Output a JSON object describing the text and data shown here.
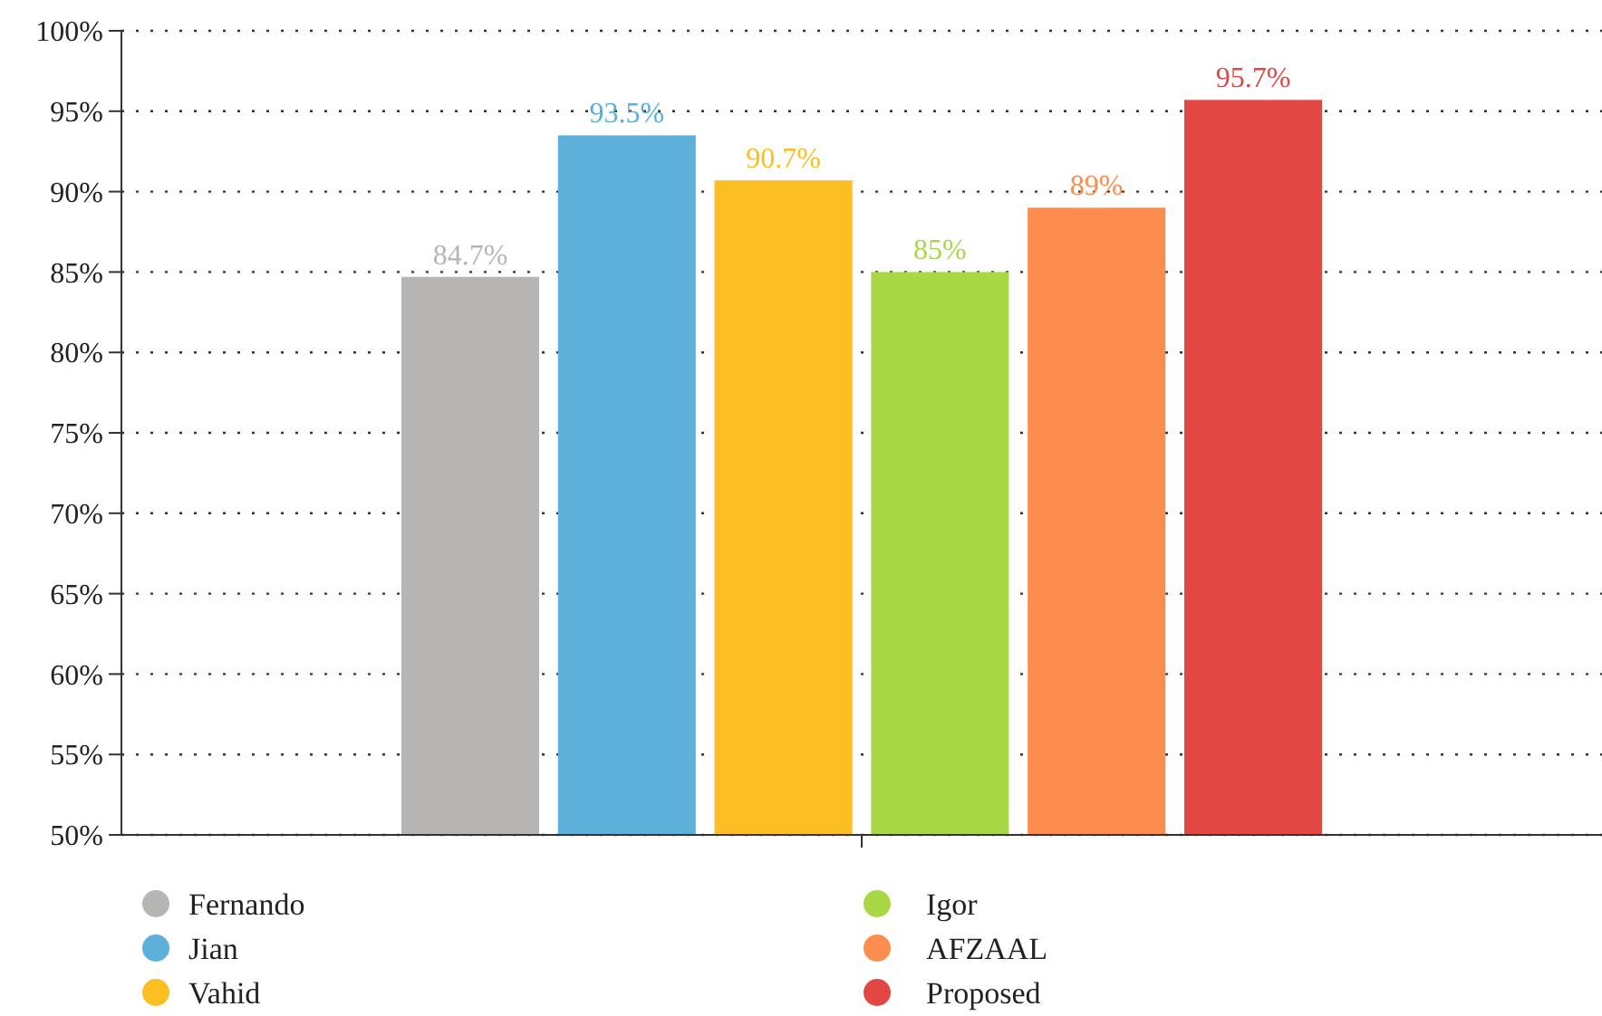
{
  "chart_data": {
    "type": "bar",
    "categories": [
      null
    ],
    "series": [
      {
        "name": "Fernando",
        "color": "#b6b5b3",
        "values": [
          84.7
        ],
        "value_labels": [
          "84.7%"
        ]
      },
      {
        "name": "Jian",
        "color": "#5cb0da",
        "values": [
          93.5
        ],
        "value_labels": [
          "93.5%"
        ]
      },
      {
        "name": "Vahid",
        "color": "#fbbf23",
        "values": [
          90.7
        ],
        "value_labels": [
          "90.7%"
        ]
      },
      {
        "name": "Igor",
        "color": "#a8d944",
        "values": [
          85
        ],
        "value_labels": [
          "85%"
        ]
      },
      {
        "name": "AFZAAL",
        "color": "#fd8c4f",
        "values": [
          89
        ],
        "value_labels": [
          "89%"
        ]
      },
      {
        "name": "Proposed",
        "color": "#e34744",
        "values": [
          95.7
        ],
        "value_labels": [
          "95.7%"
        ]
      }
    ],
    "ylim": [
      50,
      100
    ],
    "yticks": [
      {
        "value": 50,
        "label": "50%"
      },
      {
        "value": 55,
        "label": "55%"
      },
      {
        "value": 60,
        "label": "60%"
      },
      {
        "value": 65,
        "label": "65%"
      },
      {
        "value": 70,
        "label": "70%"
      },
      {
        "value": 75,
        "label": "75%"
      },
      {
        "value": 80,
        "label": "80%"
      },
      {
        "value": 85,
        "label": "85%"
      },
      {
        "value": 90,
        "label": "90%"
      },
      {
        "value": 95,
        "label": "95%"
      },
      {
        "value": 100,
        "label": "100%"
      }
    ],
    "grid": "y",
    "legend": "bottom"
  }
}
